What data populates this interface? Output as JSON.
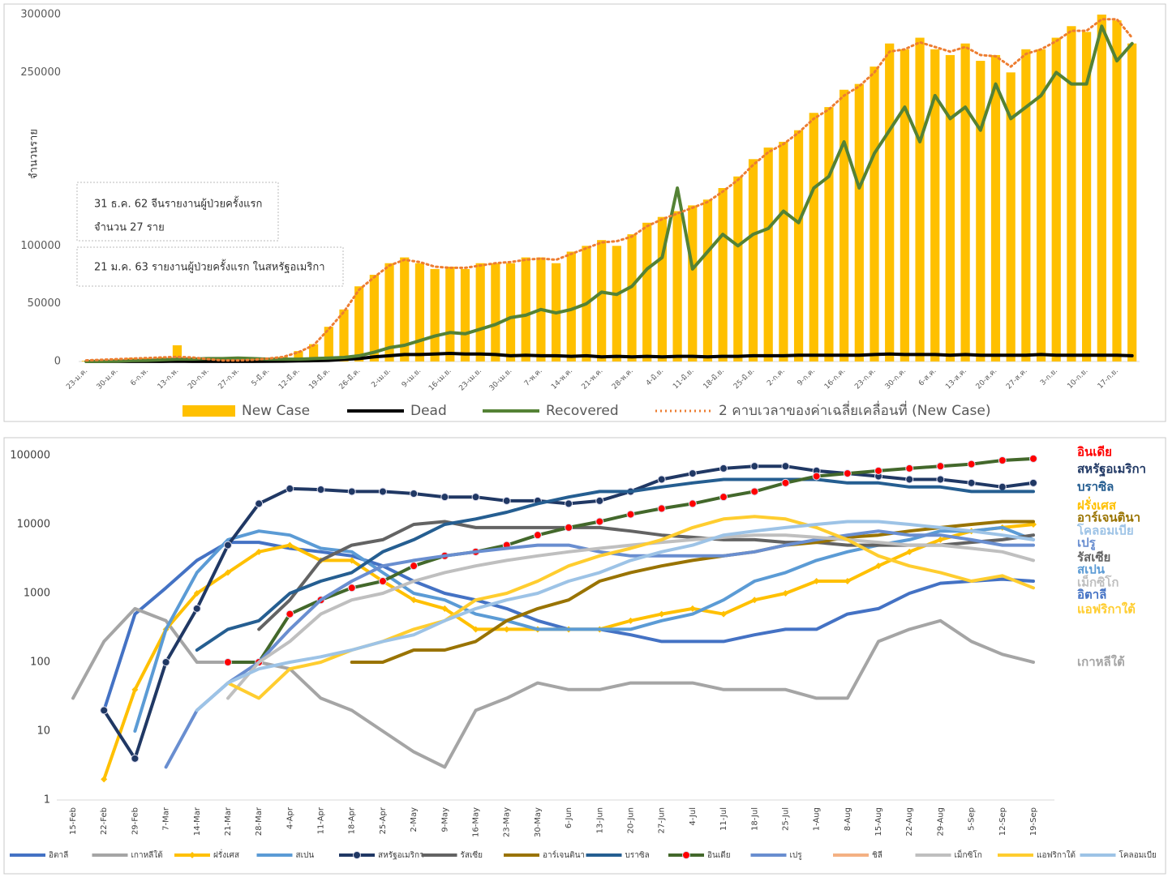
{
  "chart_data": [
    {
      "type": "combo",
      "y_label": "จำนวนราย",
      "annotations": [
        "31 ธ.ค. 62 จีนรายงานผู้ป่วยครั้งแรก",
        "จำนวน 27 ราย",
        "21 ม.ค. 63 รายงานผู้ป่วยครั้งแรก ในสหรัฐอเมริกา"
      ],
      "categories": [
        "23-ม.ค.",
        null,
        "30-ม.ค.",
        null,
        "6-ก.พ.",
        null,
        "13-ก.พ.",
        null,
        "20-ก.พ.",
        null,
        "27-ก.พ.",
        null,
        "5-มี.ค.",
        null,
        "12-มี.ค.",
        null,
        "19-มี.ค.",
        null,
        "26-มี.ค.",
        null,
        "2-เม.ย.",
        null,
        "9-เม.ย.",
        null,
        "16-เม.ย.",
        null,
        "23-เม.ย.",
        null,
        "30-เม.ย.",
        null,
        "7-พ.ค.",
        null,
        "14-พ.ค.",
        null,
        "21-พ.ค.",
        null,
        "28-พ.ค.",
        null,
        "4-มิ.ย.",
        null,
        "11-มิ.ย.",
        null,
        "18-มิ.ย.",
        null,
        "25-มิ.ย.",
        null,
        "2-ก.ค.",
        null,
        "9-ก.ค.",
        null,
        "16-ก.ค.",
        null,
        "23-ก.ค.",
        null,
        "30-ก.ค.",
        null,
        "6-ส.ค.",
        null,
        "13-ส.ค.",
        null,
        "20-ส.ค.",
        null,
        "27-ส.ค.",
        null,
        "3-ก.ย.",
        null,
        "10-ก.ย.",
        null,
        "17-ก.ย.",
        null
      ],
      "ylim": [
        0,
        300000
      ],
      "yticks": [
        0,
        50000,
        100000,
        250000,
        300000
      ],
      "series": [
        {
          "name": "New Case",
          "type": "bar",
          "color": "#ffc000",
          "values": [
            600,
            1500,
            2000,
            3000,
            3000,
            3500,
            14000,
            2000,
            1000,
            500,
            1000,
            1500,
            2500,
            4000,
            9000,
            15000,
            30000,
            45000,
            65000,
            75000,
            85000,
            90000,
            85000,
            80000,
            82000,
            80000,
            85000,
            85000,
            85000,
            90000,
            90000,
            85000,
            95000,
            100000,
            105000,
            100000,
            110000,
            120000,
            125000,
            130000,
            135000,
            140000,
            150000,
            160000,
            175000,
            185000,
            190000,
            200000,
            215000,
            220000,
            235000,
            240000,
            255000,
            275000,
            270000,
            280000,
            270000,
            265000,
            275000,
            260000,
            265000,
            250000,
            270000,
            270000,
            280000,
            290000,
            285000,
            300000,
            295000,
            275000
          ]
        },
        {
          "name": "Dead",
          "type": "line",
          "color": "#000000",
          "values": [
            20,
            50,
            80,
            100,
            100,
            100,
            300,
            100,
            100,
            50,
            50,
            100,
            200,
            300,
            500,
            700,
            1000,
            1800,
            2500,
            4000,
            5000,
            6000,
            6000,
            6500,
            7000,
            6500,
            6500,
            6000,
            5000,
            5500,
            5000,
            5000,
            4500,
            5000,
            4000,
            4500,
            4000,
            4500,
            4000,
            4500,
            4500,
            4000,
            4500,
            4500,
            5000,
            5000,
            5000,
            5500,
            5500,
            5500,
            5500,
            5500,
            6000,
            6500,
            6000,
            6000,
            6000,
            5500,
            6000,
            5500,
            5500,
            5500,
            5500,
            6000,
            5500,
            5500,
            5500,
            5500,
            5500,
            5000
          ]
        },
        {
          "name": "Recovered",
          "type": "line",
          "color": "#548235",
          "values": [
            0,
            100,
            300,
            800,
            1000,
            1500,
            2000,
            2000,
            2500,
            2500,
            3000,
            2500,
            2000,
            2000,
            2000,
            2500,
            3000,
            3500,
            5000,
            8000,
            12000,
            14000,
            18000,
            22000,
            25000,
            24000,
            28000,
            32000,
            38000,
            40000,
            45000,
            42000,
            45000,
            50000,
            60000,
            58000,
            65000,
            80000,
            90000,
            150000,
            80000,
            95000,
            110000,
            100000,
            110000,
            115000,
            130000,
            120000,
            150000,
            160000,
            190000,
            150000,
            180000,
            200000,
            220000,
            190000,
            230000,
            210000,
            220000,
            200000,
            240000,
            210000,
            220000,
            230000,
            250000,
            240000,
            240000,
            290000,
            260000,
            275000
          ]
        },
        {
          "name": "2 คาบเวลาของค่าเฉลี่ยเคลื่อนที่ (New Case)",
          "type": "line",
          "dash": "dotted",
          "color": "#ed7d31",
          "values": [
            1000,
            1500,
            2000,
            2500,
            3000,
            3500,
            4000,
            3500,
            2000,
            1000,
            1000,
            1500,
            2500,
            4000,
            8000,
            14000,
            28000,
            43000,
            62000,
            73000,
            83000,
            88000,
            86000,
            82000,
            81000,
            81000,
            83000,
            85000,
            86000,
            88000,
            89000,
            88000,
            93000,
            98000,
            103000,
            104000,
            108000,
            117000,
            123000,
            128000,
            133000,
            138000,
            147000,
            157000,
            170000,
            181000,
            188000,
            198000,
            210000,
            218000,
            230000,
            238000,
            250000,
            268000,
            270000,
            276000,
            272000,
            268000,
            272000,
            265000,
            264000,
            255000,
            266000,
            270000,
            277000,
            286000,
            286000,
            296000,
            296000,
            280000
          ]
        }
      ]
    },
    {
      "type": "line",
      "log": true,
      "categories": [
        "15-Feb",
        "22-Feb",
        "29-Feb",
        "7-Mar",
        "14-Mar",
        "21-Mar",
        "28-Mar",
        "4-Apr",
        "11-Apr",
        "18-Apr",
        "25-Apr",
        "2-May",
        "9-May",
        "16-May",
        "23-May",
        "30-May",
        "6-Jun",
        "13-Jun",
        "20-Jun",
        "27-Jun",
        "4-Jul",
        "11-Jul",
        "18-Jul",
        "25-Jul",
        "1-Aug",
        "8-Aug",
        "15-Aug",
        "22-Aug",
        "29-Aug",
        "5-Sep",
        "12-Sep",
        "19-Sep"
      ],
      "ylim": [
        1,
        100000
      ],
      "yticks": [
        1,
        10,
        100,
        1000,
        10000,
        100000
      ],
      "series": [
        {
          "name": "อิตาลี",
          "color": "#4472c4",
          "values": [
            null,
            20,
            500,
            1200,
            3000,
            5500,
            5500,
            4500,
            4000,
            3500,
            2500,
            1500,
            1000,
            800,
            600,
            400,
            300,
            300,
            250,
            200,
            200,
            200,
            250,
            300,
            300,
            500,
            600,
            1000,
            1400,
            1500,
            1600,
            1500
          ]
        },
        {
          "name": "เกาหลีใต้",
          "color": "#a5a5a5",
          "values": [
            30,
            200,
            600,
            400,
            100,
            100,
            100,
            80,
            30,
            20,
            10,
            5,
            3,
            20,
            30,
            50,
            40,
            40,
            50,
            50,
            50,
            40,
            40,
            40,
            30,
            30,
            200,
            300,
            400,
            200,
            130,
            100
          ]
        },
        {
          "name": "ฝรั่งเศส",
          "color": "#ffc000",
          "marker": "diamond",
          "values": [
            null,
            2,
            40,
            300,
            1000,
            2000,
            4000,
            5000,
            3000,
            3000,
            1500,
            800,
            600,
            300,
            300,
            300,
            300,
            300,
            400,
            500,
            600,
            500,
            800,
            1000,
            1500,
            1500,
            2500,
            4000,
            6000,
            8000,
            9000,
            10000
          ]
        },
        {
          "name": "สเปน",
          "color": "#5b9bd5",
          "values": [
            null,
            null,
            10,
            300,
            2000,
            6000,
            8000,
            7000,
            4500,
            4000,
            2000,
            1000,
            800,
            500,
            400,
            300,
            300,
            300,
            300,
            400,
            500,
            800,
            1500,
            2000,
            3000,
            4000,
            5000,
            6000,
            8000,
            8000,
            9000,
            6000
          ]
        },
        {
          "name": "สหรัฐอเมริกา",
          "color": "#203864",
          "marker": "circle",
          "values": [
            null,
            20,
            4,
            100,
            600,
            5000,
            20000,
            33000,
            32000,
            30000,
            30000,
            28000,
            25000,
            25000,
            22000,
            22000,
            20000,
            22000,
            30000,
            45000,
            55000,
            65000,
            70000,
            70000,
            60000,
            55000,
            50000,
            45000,
            45000,
            40000,
            35000,
            40000
          ]
        },
        {
          "name": "รัสเซีย",
          "color": "#636363",
          "values": [
            null,
            null,
            null,
            null,
            null,
            null,
            300,
            800,
            3000,
            5000,
            6000,
            10000,
            11000,
            9000,
            9000,
            9000,
            9000,
            9000,
            8000,
            7000,
            6500,
            6000,
            6000,
            5500,
            5500,
            5000,
            5000,
            5000,
            5000,
            5500,
            6000,
            7000
          ]
        },
        {
          "name": "อาร์เจนตินา",
          "color": "#997300",
          "values": [
            null,
            null,
            null,
            null,
            null,
            null,
            null,
            null,
            null,
            100,
            100,
            150,
            150,
            200,
            400,
            600,
            800,
            1500,
            2000,
            2500,
            3000,
            3500,
            4000,
            5000,
            5500,
            6500,
            7000,
            8000,
            9000,
            10000,
            11000,
            11000
          ]
        },
        {
          "name": "บราซิล",
          "color": "#255e91",
          "values": [
            null,
            null,
            null,
            null,
            150,
            300,
            400,
            1000,
            1500,
            2000,
            4000,
            6000,
            10000,
            12000,
            15000,
            20000,
            25000,
            30000,
            30000,
            35000,
            40000,
            45000,
            45000,
            45000,
            45000,
            40000,
            40000,
            35000,
            35000,
            30000,
            30000,
            30000
          ]
        },
        {
          "name": "อินเดีย",
          "color": "#43682b",
          "marker": "circle",
          "marker_color": "#ff0000",
          "values": [
            null,
            null,
            null,
            null,
            null,
            100,
            100,
            500,
            800,
            1200,
            1500,
            2500,
            3500,
            4000,
            5000,
            7000,
            9000,
            11000,
            14000,
            17000,
            20000,
            25000,
            30000,
            40000,
            50000,
            55000,
            60000,
            65000,
            70000,
            75000,
            85000,
            90000
          ]
        },
        {
          "name": "เปรู",
          "color": "#698ed0",
          "values": [
            null,
            null,
            null,
            3,
            20,
            50,
            100,
            300,
            800,
            1500,
            2500,
            3000,
            3500,
            4000,
            4500,
            5000,
            5000,
            4000,
            3500,
            3500,
            3500,
            3500,
            4000,
            5000,
            6000,
            7000,
            8000,
            7000,
            7000,
            6000,
            5000,
            5000
          ]
        },
        {
          "name": "ชิลี",
          "color": "#f4b183",
          "values": [
            null,
            null,
            null,
            null,
            null,
            null,
            null,
            null,
            null,
            null,
            null,
            null,
            null,
            null,
            null,
            null,
            null,
            null,
            null,
            null,
            null,
            null,
            null,
            null,
            null,
            null,
            null,
            null,
            null,
            null,
            null,
            null
          ]
        },
        {
          "name": "เม็กซิโก",
          "color": "#bfbfbf",
          "values": [
            null,
            null,
            null,
            null,
            null,
            30,
            100,
            200,
            500,
            800,
            1000,
            1500,
            2000,
            2500,
            3000,
            3500,
            4000,
            4500,
            5000,
            5500,
            6000,
            6500,
            7000,
            7000,
            6500,
            6000,
            5500,
            5000,
            5000,
            4500,
            4000,
            3000
          ]
        },
        {
          "name": "แอฟริกาใต้",
          "color": "#ffcd2f",
          "values": [
            null,
            null,
            null,
            null,
            null,
            50,
            30,
            80,
            100,
            150,
            200,
            300,
            400,
            800,
            1000,
            1500,
            2500,
            3500,
            4500,
            6000,
            9000,
            12000,
            13000,
            12000,
            9000,
            6000,
            3500,
            2500,
            2000,
            1500,
            1800,
            1200
          ]
        },
        {
          "name": "โคลอมเบีย",
          "color": "#9dc3e6",
          "values": [
            null,
            null,
            null,
            null,
            20,
            50,
            80,
            100,
            120,
            150,
            200,
            250,
            400,
            600,
            800,
            1000,
            1500,
            2000,
            3000,
            4000,
            5000,
            7000,
            8000,
            9000,
            10000,
            11000,
            11000,
            10000,
            9000,
            8000,
            7000,
            6000
          ]
        }
      ]
    }
  ]
}
